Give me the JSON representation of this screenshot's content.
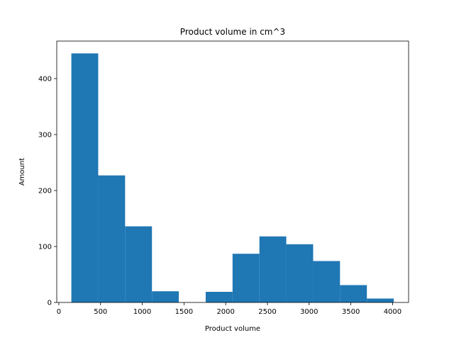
{
  "chart_data": {
    "type": "bar",
    "subtype": "histogram",
    "title": "Product volume in cm^3",
    "xlabel": "Product volume",
    "ylabel": "Amount",
    "xlim": [
      -25,
      4192
    ],
    "ylim": [
      0,
      467
    ],
    "xticks": [
      0,
      500,
      1000,
      1500,
      2000,
      2500,
      3000,
      3500,
      4000
    ],
    "yticks": [
      0,
      100,
      200,
      300,
      400
    ],
    "grid": false,
    "color": "#1f77b4",
    "bins": [
      {
        "x0": 150,
        "x1": 472,
        "count": 445
      },
      {
        "x0": 472,
        "x1": 794,
        "count": 227
      },
      {
        "x0": 794,
        "x1": 1116,
        "count": 136
      },
      {
        "x0": 1116,
        "x1": 1438,
        "count": 20
      },
      {
        "x0": 1438,
        "x1": 1760,
        "count": 0
      },
      {
        "x0": 1760,
        "x1": 2082,
        "count": 19
      },
      {
        "x0": 2082,
        "x1": 2404,
        "count": 87
      },
      {
        "x0": 2404,
        "x1": 2726,
        "count": 118
      },
      {
        "x0": 2726,
        "x1": 3048,
        "count": 104
      },
      {
        "x0": 3048,
        "x1": 3370,
        "count": 74
      },
      {
        "x0": 3370,
        "x1": 3692,
        "count": 31
      },
      {
        "x0": 3692,
        "x1": 4014,
        "count": 7
      }
    ]
  }
}
